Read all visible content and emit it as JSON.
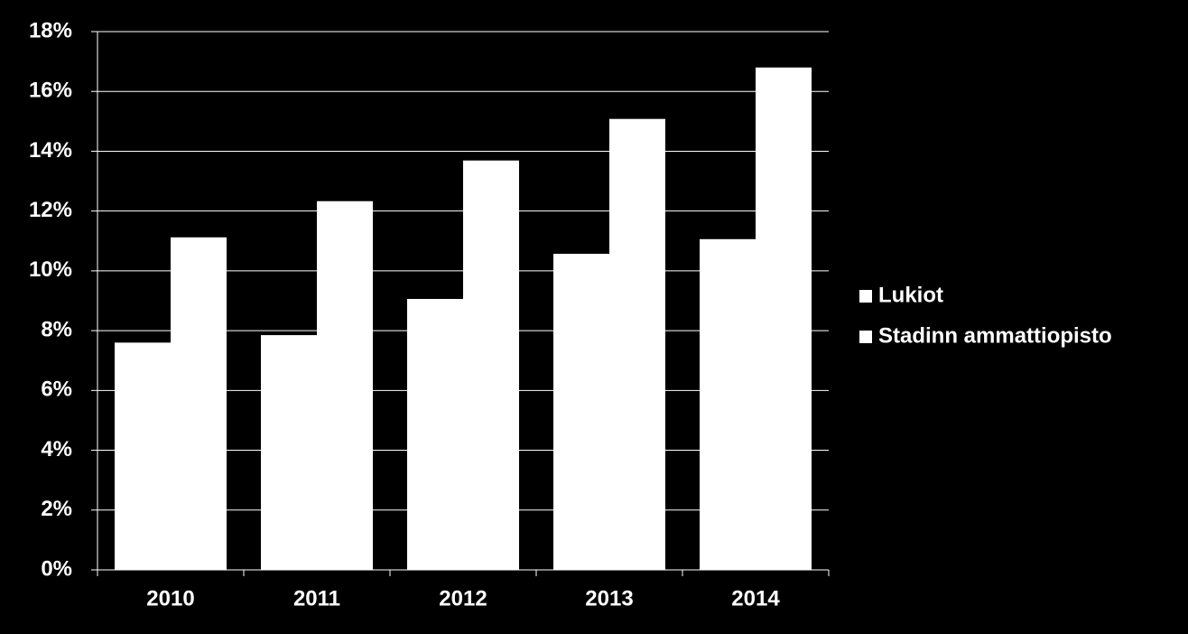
{
  "chart_data": {
    "type": "bar",
    "categories": [
      "2010",
      "2011",
      "2012",
      "2013",
      "2014"
    ],
    "series": [
      {
        "name": "Lukiot",
        "color": "#ffffff",
        "values": [
          7.6,
          7.85,
          9.06,
          10.57,
          11.06
        ]
      },
      {
        "name": "Stadinn ammattiopisto",
        "color": "#ffffff",
        "values": [
          11.12,
          12.33,
          13.69,
          15.08,
          16.8
        ]
      }
    ],
    "ylim": [
      0,
      18
    ],
    "yticks": [
      {
        "value": 0,
        "label": "0%"
      },
      {
        "value": 2,
        "label": "2%"
      },
      {
        "value": 4,
        "label": "4%"
      },
      {
        "value": 6,
        "label": "6%"
      },
      {
        "value": 8,
        "label": "8%"
      },
      {
        "value": 10,
        "label": "10%"
      },
      {
        "value": 12,
        "label": "12%"
      },
      {
        "value": 14,
        "label": "14%"
      },
      {
        "value": 16,
        "label": "16%"
      },
      {
        "value": 18,
        "label": "18%"
      }
    ],
    "grid": true,
    "legend": "right"
  }
}
